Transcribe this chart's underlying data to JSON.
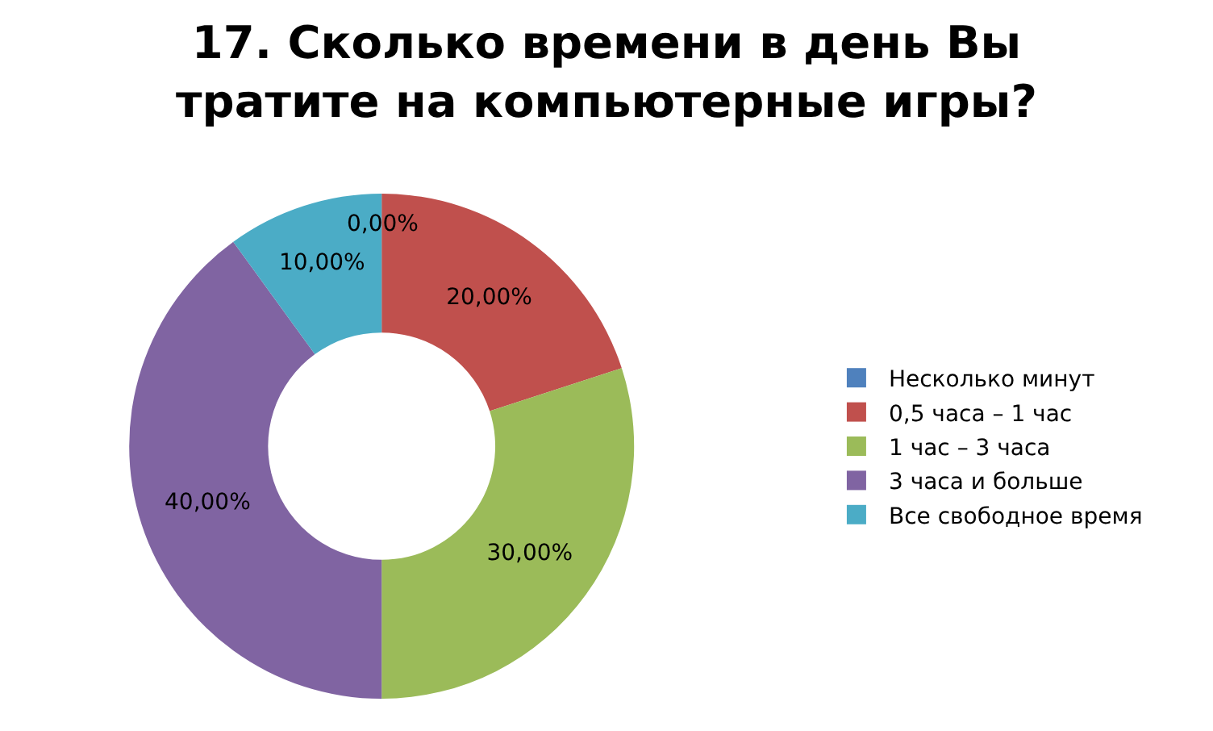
{
  "chart_data": {
    "type": "donut",
    "title": "17. Сколько времени в день Вы тратите на компьютерные игры?",
    "categories": [
      "Несколько минут",
      "0,5 часа – 1 час",
      "1 час – 3 часа",
      "3 часа и больше",
      "Все свободное время"
    ],
    "values": [
      0,
      20,
      30,
      40,
      10
    ],
    "value_labels": [
      "0,00%",
      "20,00%",
      "30,00%",
      "40,00%",
      "10,00%"
    ],
    "colors": [
      "#4f81bd",
      "#c0504d",
      "#9bbb59",
      "#8064a2",
      "#4bacc6"
    ],
    "legend": "right"
  }
}
